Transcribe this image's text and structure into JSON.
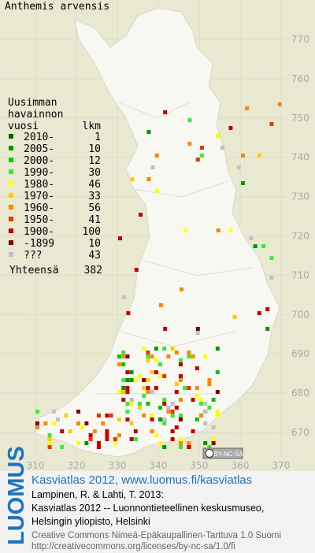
{
  "title": "Anthemis arvensis",
  "legend": {
    "header": [
      "Uusimman",
      "havainnon",
      "vuosi"
    ],
    "count_header": "lkm",
    "items": [
      {
        "label": "2010-",
        "count": 1,
        "color": "#006600"
      },
      {
        "label": "2005-",
        "count": 10,
        "color": "#009900"
      },
      {
        "label": "2000-",
        "count": 12,
        "color": "#00cc00"
      },
      {
        "label": "1990-",
        "count": 30,
        "color": "#33ee33"
      },
      {
        "label": "1980-",
        "count": 46,
        "color": "#ffff00"
      },
      {
        "label": "1970-",
        "count": 33,
        "color": "#ffcc00"
      },
      {
        "label": "1960-",
        "count": 56,
        "color": "#ff8800"
      },
      {
        "label": "1950-",
        "count": 41,
        "color": "#ee3300"
      },
      {
        "label": "1900-",
        "count": 100,
        "color": "#cc0000"
      },
      {
        "label": "-1899",
        "count": 10,
        "color": "#880000"
      },
      {
        "label": "???",
        "count": 43,
        "color": "#c0c0c0"
      }
    ],
    "total_label": "Yhteensä",
    "total": 382
  },
  "grid": {
    "x_labels": [
      310,
      320,
      330,
      340,
      350,
      360,
      370
    ],
    "y_labels": [
      770,
      760,
      750,
      740,
      730,
      720,
      710,
      700,
      690,
      680,
      670
    ]
  },
  "license_badge": "BY-NC-SA",
  "footer": {
    "brand": "LUOMUS",
    "link": "Kasviatlas 2012, www.luomus.fi/kasviatlas",
    "citation": [
      "Lampinen, R. & Lahti, T. 2013:",
      "Kasviatlas 2012 -- Luonnontieteellinen keskusmuseo,",
      "Helsingin yliopisto, Helsinki"
    ],
    "license": [
      "Creative Commons Nimeä-Epäkaupallinen-Tarttuva 1.0 Suomi",
      "http://creativecommons.org/licenses/by-nc-sa/1.0/fi"
    ]
  }
}
